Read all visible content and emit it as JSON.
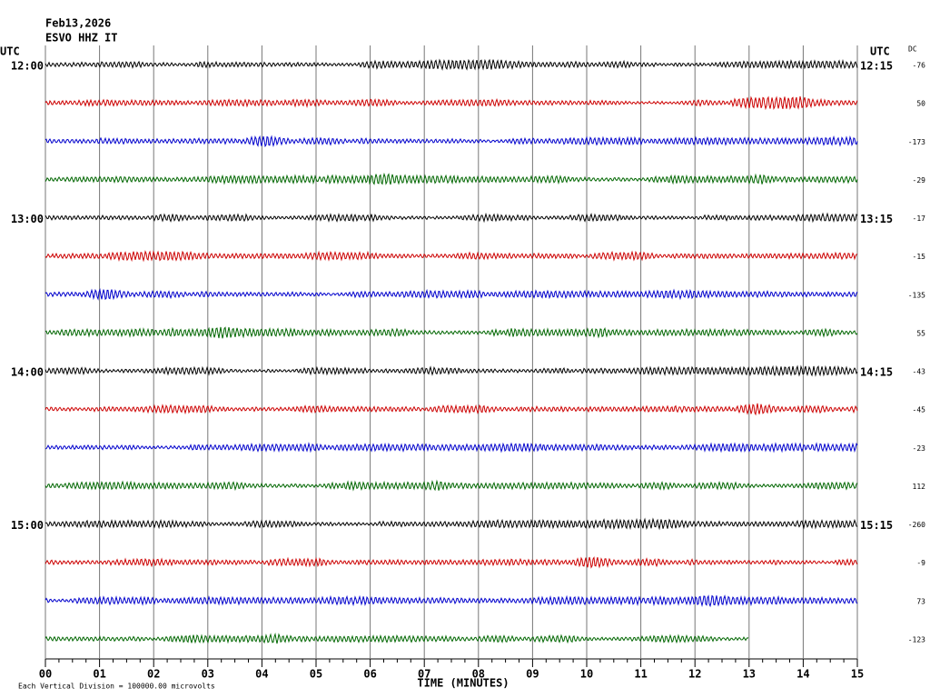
{
  "header": {
    "date": "Feb13,2026",
    "station": "ESVO HHZ IT"
  },
  "left_label": "UTC",
  "right_label": "UTC",
  "dc_label": "DC",
  "x_axis": {
    "title": "TIME (MINUTES)",
    "ticks": [
      "00",
      "01",
      "02",
      "03",
      "04",
      "05",
      "06",
      "07",
      "08",
      "09",
      "10",
      "11",
      "12",
      "13",
      "14",
      "15"
    ]
  },
  "trace_colors": [
    "#000000",
    "#cc0000",
    "#0000cc",
    "#006600"
  ],
  "rows": [
    {
      "left": "12:00",
      "right": "12:15",
      "dc": -76
    },
    {
      "dc": 50
    },
    {
      "dc": -173
    },
    {
      "dc": -29
    },
    {
      "left": "13:00",
      "right": "13:15",
      "dc": -17
    },
    {
      "dc": -15
    },
    {
      "dc": -135
    },
    {
      "dc": 55
    },
    {
      "left": "14:00",
      "right": "14:15",
      "dc": -43
    },
    {
      "dc": -45
    },
    {
      "dc": -23
    },
    {
      "dc": 112
    },
    {
      "left": "15:00",
      "right": "15:15",
      "dc": -260
    },
    {
      "dc": -9
    },
    {
      "dc": 73
    },
    {
      "dc": -123
    }
  ],
  "footer": "Each Vertical Division = 100000.00 microvolts"
}
